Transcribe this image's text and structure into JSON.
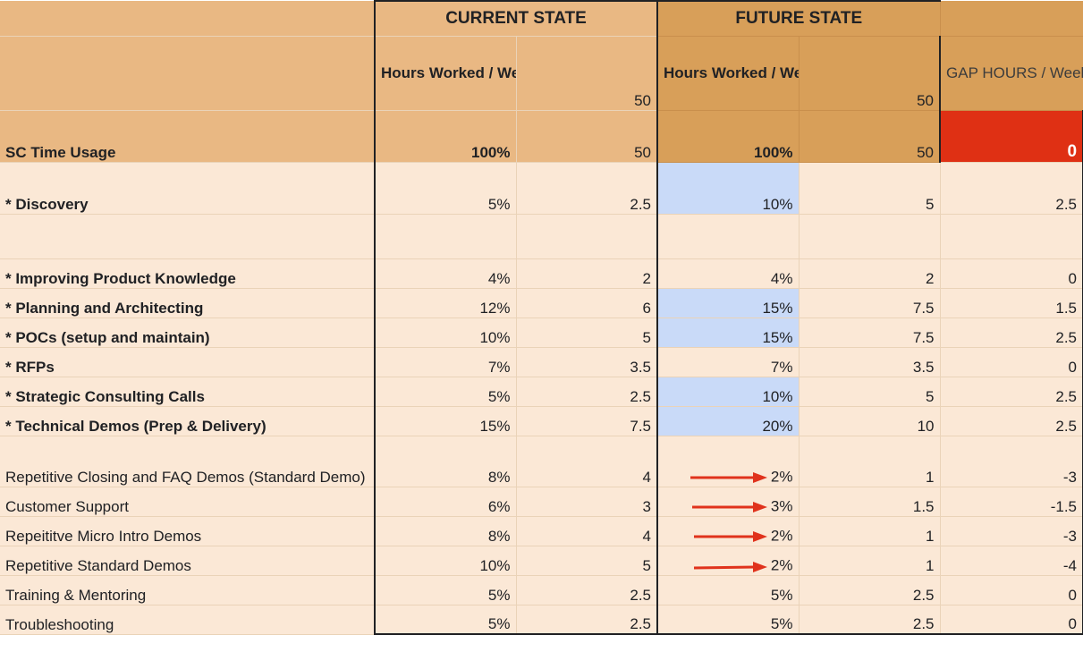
{
  "header": {
    "current_state": "CURRENT STATE",
    "future_state": "FUTURE STATE",
    "cur_hours_label": "Hours Worked / Week",
    "cur_hours_value": "50",
    "fut_hours_label": "Hours Worked / Week",
    "fut_hours_value": "50",
    "gap_label": "GAP HOURS / Week"
  },
  "usage": {
    "label": "SC Time Usage",
    "cur_pct": "100%",
    "cur_hours": "50",
    "fut_pct": "100%",
    "fut_hours": "50",
    "gap": "0"
  },
  "rows": [
    {
      "label": "* Discovery",
      "cur_pct": "5%",
      "cur_hrs": "2.5",
      "fut_pct": "10%",
      "fut_hrs": "5",
      "gap": "2.5"
    },
    {
      "label": "",
      "cur_pct": "",
      "cur_hrs": "",
      "fut_pct": "",
      "fut_hrs": "",
      "gap": ""
    },
    {
      "label": "* Improving Product Knowledge",
      "cur_pct": "4%",
      "cur_hrs": "2",
      "fut_pct": "4%",
      "fut_hrs": "2",
      "gap": "0"
    },
    {
      "label": "* Planning and Architecting",
      "cur_pct": "12%",
      "cur_hrs": "6",
      "fut_pct": "15%",
      "fut_hrs": "7.5",
      "gap": "1.5"
    },
    {
      "label": "* POCs (setup and maintain)",
      "cur_pct": "10%",
      "cur_hrs": "5",
      "fut_pct": "15%",
      "fut_hrs": "7.5",
      "gap": "2.5"
    },
    {
      "label": "* RFPs",
      "cur_pct": "7%",
      "cur_hrs": "3.5",
      "fut_pct": "7%",
      "fut_hrs": "3.5",
      "gap": "0"
    },
    {
      "label": "* Strategic Consulting Calls",
      "cur_pct": "5%",
      "cur_hrs": "2.5",
      "fut_pct": "10%",
      "fut_hrs": "5",
      "gap": "2.5"
    },
    {
      "label": "* Technical Demos (Prep & Delivery)",
      "cur_pct": "15%",
      "cur_hrs": "7.5",
      "fut_pct": "20%",
      "fut_hrs": "10",
      "gap": "2.5"
    },
    {
      "label": "Repetitive Closing and FAQ Demos (Standard Demo)",
      "cur_pct": "8%",
      "cur_hrs": "4",
      "fut_pct": "2%",
      "fut_hrs": "1",
      "gap": "-3"
    },
    {
      "label": "Customer Support",
      "cur_pct": "6%",
      "cur_hrs": "3",
      "fut_pct": "3%",
      "fut_hrs": "1.5",
      "gap": "-1.5"
    },
    {
      "label": "Repeititve Micro Intro Demos",
      "cur_pct": "8%",
      "cur_hrs": "4",
      "fut_pct": "2%",
      "fut_hrs": "1",
      "gap": "-3"
    },
    {
      "label": "Repetitive Standard Demos",
      "cur_pct": "10%",
      "cur_hrs": "5",
      "fut_pct": "2%",
      "fut_hrs": "1",
      "gap": "-4"
    },
    {
      "label": "Training & Mentoring",
      "cur_pct": "5%",
      "cur_hrs": "2.5",
      "fut_pct": "5%",
      "fut_hrs": "2.5",
      "gap": "0"
    },
    {
      "label": "Troubleshooting",
      "cur_pct": "5%",
      "cur_hrs": "2.5",
      "fut_pct": "5%",
      "fut_hrs": "2.5",
      "gap": "0"
    }
  ],
  "colors": {
    "header_current": "#e9b883",
    "header_future": "#d89f59",
    "body": "#fbe8d6",
    "highlight_blue": "#c9daf8",
    "gap_red": "#df3014",
    "arrow_red": "#e0321c"
  },
  "icons": {
    "arrow": "arrow-right-icon"
  }
}
